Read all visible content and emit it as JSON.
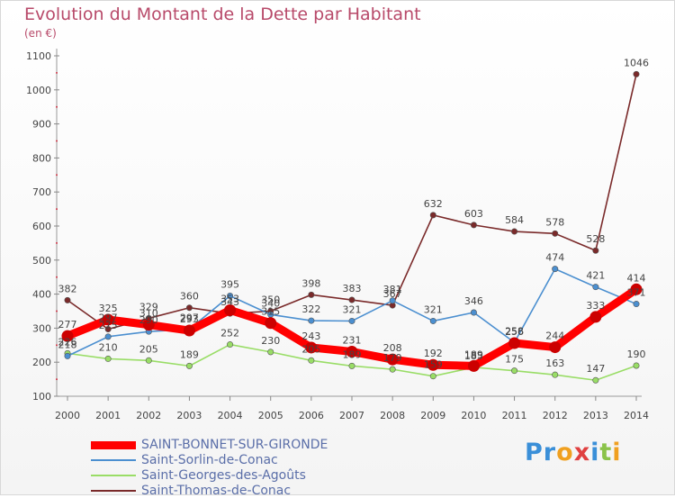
{
  "title": "Evolution du Montant de la Dette par Habitant",
  "unit_label": "(en €)",
  "logo": "Proxiti",
  "chart_data": {
    "type": "line",
    "title": "Evolution du Montant de la Dette par Habitant",
    "ylabel": "(en €)",
    "x": [
      2000,
      2001,
      2002,
      2003,
      2004,
      2005,
      2006,
      2007,
      2008,
      2009,
      2010,
      2011,
      2012,
      2013,
      2014
    ],
    "y_ticks": [
      100,
      200,
      300,
      400,
      500,
      600,
      700,
      800,
      900,
      1000,
      1100
    ],
    "ylim": [
      100,
      1100
    ],
    "grid": false,
    "legend_position": "bottom-left",
    "series": [
      {
        "name": "Saint-Thomas-de-Conac",
        "color": "#7a2a2a",
        "values": [
          382,
          297,
          329,
          360,
          343,
          350,
          398,
          383,
          367,
          632,
          603,
          584,
          578,
          528,
          1046
        ]
      },
      {
        "name": "Saint-Georges-des-Agoûts",
        "color": "#99dd66",
        "values": [
          226,
          210,
          205,
          189,
          252,
          230,
          205,
          189,
          179,
          159,
          185,
          175,
          163,
          147,
          190
        ]
      },
      {
        "name": "Saint-Sorlin-de-Conac",
        "color": "#4b8fd0",
        "values": [
          218,
          275,
          290,
          297,
          395,
          340,
          322,
          321,
          381,
          321,
          346,
          258,
          474,
          421,
          371
        ]
      },
      {
        "name": "SAINT-BONNET-SUR-GIRONDE",
        "color": "#ff0000",
        "values": [
          277,
          325,
          310,
          293,
          353,
          315,
          243,
          231,
          208,
          192,
          189,
          256,
          244,
          333,
          414
        ]
      }
    ]
  }
}
